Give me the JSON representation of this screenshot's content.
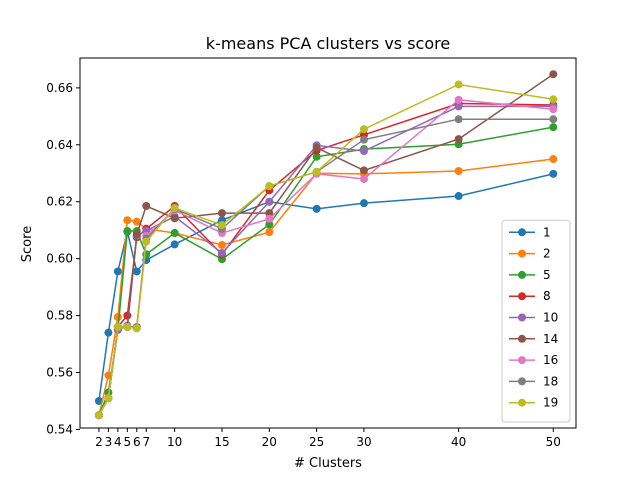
{
  "chart_data": {
    "type": "line",
    "title": "k-means PCA clusters vs score",
    "xlabel": "# Clusters",
    "ylabel": "Score",
    "x": [
      2,
      3,
      4,
      5,
      6,
      7,
      10,
      15,
      20,
      25,
      30,
      40,
      50
    ],
    "x_ticks": [
      2,
      3,
      4,
      5,
      6,
      7,
      10,
      15,
      20,
      25,
      30,
      40,
      50
    ],
    "y_ticks": [
      0.54,
      0.56,
      0.58,
      0.6,
      0.62,
      0.64,
      0.66
    ],
    "xlim": [
      0.0,
      52.4
    ],
    "ylim": [
      0.5405,
      0.6705
    ],
    "grid": false,
    "legend_position": "lower right",
    "series": [
      {
        "name": "1",
        "color": "#1f77b4",
        "values": [
          0.55,
          0.574,
          0.5955,
          0.6095,
          0.5955,
          0.5995,
          0.605,
          0.6135,
          0.62,
          0.6175,
          0.6195,
          0.622,
          0.6298
        ]
      },
      {
        "name": "2",
        "color": "#ff7f0e",
        "values": [
          0.545,
          0.559,
          0.5795,
          0.6135,
          0.613,
          0.6105,
          0.609,
          0.6048,
          0.6093,
          0.63,
          0.6298,
          0.6308,
          0.635
        ]
      },
      {
        "name": "5",
        "color": "#2ca02c",
        "values": [
          0.545,
          0.553,
          0.575,
          0.6097,
          0.6097,
          0.6015,
          0.609,
          0.5998,
          0.612,
          0.6358,
          0.6385,
          0.6402,
          0.6462
        ]
      },
      {
        "name": "8",
        "color": "#d62728",
        "values": [
          0.545,
          0.551,
          0.576,
          0.58,
          0.6075,
          0.6105,
          0.6185,
          0.6015,
          0.624,
          0.638,
          0.6435,
          0.6545,
          0.654
        ]
      },
      {
        "name": "10",
        "color": "#9467bd",
        "values": [
          0.545,
          0.551,
          0.575,
          0.5765,
          0.608,
          0.6098,
          0.6148,
          0.602,
          0.62,
          0.6398,
          0.6378,
          0.6535,
          0.6535
        ]
      },
      {
        "name": "14",
        "color": "#8c564b",
        "values": [
          0.545,
          0.551,
          0.576,
          0.576,
          0.6085,
          0.6185,
          0.6142,
          0.616,
          0.616,
          0.639,
          0.631,
          0.642,
          0.6648
        ]
      },
      {
        "name": "16",
        "color": "#e377c2",
        "values": [
          0.545,
          0.551,
          0.576,
          0.576,
          0.576,
          0.608,
          0.617,
          0.609,
          0.614,
          0.6298,
          0.628,
          0.6558,
          0.6525
        ]
      },
      {
        "name": "18",
        "color": "#7f7f7f",
        "values": [
          0.545,
          0.551,
          0.576,
          0.576,
          0.576,
          0.607,
          0.6175,
          0.6105,
          0.6255,
          0.6305,
          0.6418,
          0.649,
          0.649
        ]
      },
      {
        "name": "19",
        "color": "#bcbd22",
        "values": [
          0.545,
          0.551,
          0.576,
          0.576,
          0.5755,
          0.606,
          0.6178,
          0.6118,
          0.6255,
          0.6305,
          0.6455,
          0.6612,
          0.656
        ]
      }
    ]
  }
}
